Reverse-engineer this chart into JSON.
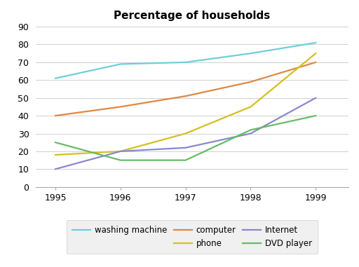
{
  "title": "Percentage of households",
  "years": [
    1995,
    1996,
    1997,
    1998,
    1999
  ],
  "series": [
    {
      "name": "washing machine",
      "values": [
        61,
        69,
        70,
        75,
        81
      ],
      "color": "#6dcfdc"
    },
    {
      "name": "computer",
      "values": [
        40,
        45,
        51,
        59,
        70
      ],
      "color": "#e08840"
    },
    {
      "name": "phone",
      "values": [
        18,
        20,
        30,
        45,
        75
      ],
      "color": "#d4c020"
    },
    {
      "name": "Internet",
      "values": [
        10,
        20,
        22,
        30,
        50
      ],
      "color": "#8888cc"
    },
    {
      "name": "DVD player",
      "values": [
        25,
        15,
        15,
        32,
        40
      ],
      "color": "#66bb66"
    }
  ],
  "ylim": [
    0,
    90
  ],
  "yticks": [
    0,
    10,
    20,
    30,
    40,
    50,
    60,
    70,
    80,
    90
  ],
  "xlim": [
    1994.7,
    1999.5
  ],
  "background_color": "#ffffff",
  "legend_row1": [
    "washing machine",
    "computer"
  ],
  "legend_row2": [
    "phone",
    "Internet",
    "DVD player"
  ],
  "grid_color": "#d0d0d0",
  "title_fontsize": 11,
  "tick_fontsize": 9,
  "legend_fontsize": 8.5,
  "linewidth": 1.6
}
